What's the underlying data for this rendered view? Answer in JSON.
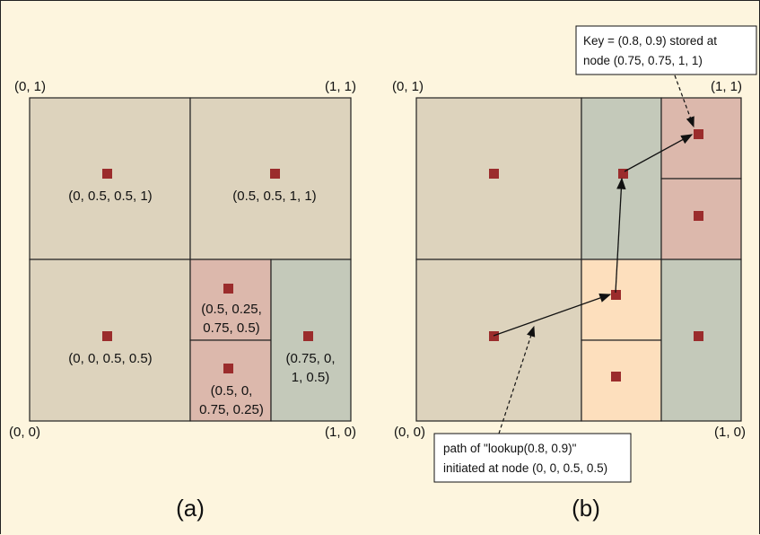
{
  "panel_a": {
    "corners": {
      "top_left": "(0, 1)",
      "top_right": "(1, 1)",
      "bottom_left": "(0, 0)",
      "bottom_right": "(1, 0)"
    },
    "labels": {
      "top_left": "(0, 0.5, 0.5, 1)",
      "top_right": "(0.5, 0.5, 1, 1)",
      "bottom_left": "(0, 0, 0.5, 0.5)",
      "small_top_line1": "(0.5, 0.25,",
      "small_top_line2": "0.75, 0.5)",
      "small_bottom_line1": "(0.5, 0,",
      "small_bottom_line2": "0.75, 0.25)",
      "right_line1": "(0.75, 0,",
      "right_line2": "1, 0.5)"
    },
    "caption": "(a)"
  },
  "panel_b": {
    "corners": {
      "top_left": "(0, 1)",
      "top_right": "(1, 1)",
      "bottom_left": "(0, 0)",
      "bottom_right": "(1, 0)"
    },
    "key_note_line1": "Key = (0.8, 0.9) stored at",
    "key_note_line2": "node (0.75, 0.75, 1, 1)",
    "path_note_line1": "path of \"lookup(0.8, 0.9)\"",
    "path_note_line2": "initiated at node (0, 0, 0.5, 0.5)",
    "caption": "(b)"
  },
  "colors": {
    "tan": "#ddd3bd",
    "pink": "#dcb8ac",
    "sage": "#c4c9ba",
    "peach": "#fddfbd",
    "node": "#9b2c2c",
    "background": "#fdf5de"
  }
}
